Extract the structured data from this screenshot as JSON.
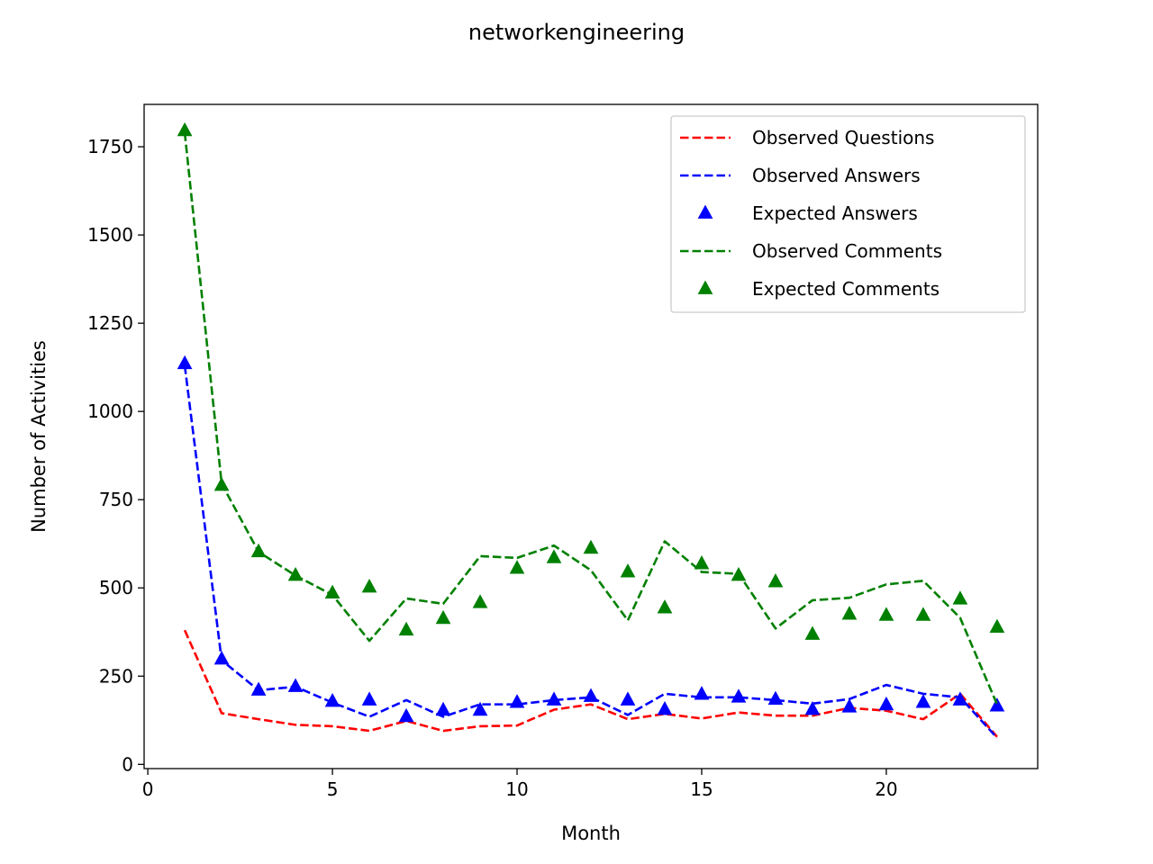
{
  "chart_data": {
    "type": "line",
    "title": "networkengineering",
    "xlabel": "Month",
    "ylabel": "Number of Activities",
    "xlim": [
      -0.1,
      24.1
    ],
    "ylim": [
      -12,
      1870
    ],
    "xticks": [
      0,
      5,
      10,
      15,
      20
    ],
    "yticks": [
      0,
      250,
      500,
      750,
      1000,
      1250,
      1500,
      1750
    ],
    "grid": false,
    "legend_position": "top-right",
    "x": [
      1,
      2,
      3,
      4,
      5,
      6,
      7,
      8,
      9,
      10,
      11,
      12,
      13,
      14,
      15,
      16,
      17,
      18,
      19,
      20,
      21,
      22,
      23
    ],
    "series": [
      {
        "name": "Observed Questions",
        "style": "dashed-line",
        "color": "#ff0000",
        "values": [
          380,
          145,
          128,
          112,
          108,
          95,
          123,
          95,
          108,
          110,
          155,
          170,
          128,
          143,
          130,
          147,
          138,
          138,
          160,
          152,
          128,
          200,
          78
        ]
      },
      {
        "name": "Observed Answers",
        "style": "dashed-line",
        "color": "#0000ff",
        "values": [
          1130,
          295,
          210,
          220,
          175,
          135,
          182,
          135,
          170,
          170,
          182,
          190,
          140,
          200,
          190,
          190,
          182,
          172,
          185,
          225,
          200,
          190,
          75
        ]
      },
      {
        "name": "Expected Answers",
        "style": "triangle-markers",
        "color": "#0000ff",
        "values": [
          1135,
          298,
          210,
          220,
          178,
          182,
          135,
          153,
          153,
          175,
          182,
          192,
          182,
          155,
          198,
          190,
          184,
          155,
          162,
          168,
          175,
          182,
          165
        ]
      },
      {
        "name": "Observed Comments",
        "style": "dashed-line",
        "color": "#008000",
        "values": [
          1790,
          795,
          602,
          535,
          480,
          350,
          470,
          455,
          590,
          585,
          620,
          550,
          408,
          632,
          545,
          540,
          385,
          465,
          472,
          510,
          520,
          415,
          170
        ]
      },
      {
        "name": "Expected Comments",
        "style": "triangle-markers",
        "color": "#008000",
        "values": [
          1795,
          790,
          602,
          535,
          485,
          502,
          380,
          413,
          458,
          555,
          585,
          612,
          545,
          443,
          568,
          535,
          517,
          368,
          425,
          422,
          422,
          468,
          388
        ]
      }
    ]
  }
}
